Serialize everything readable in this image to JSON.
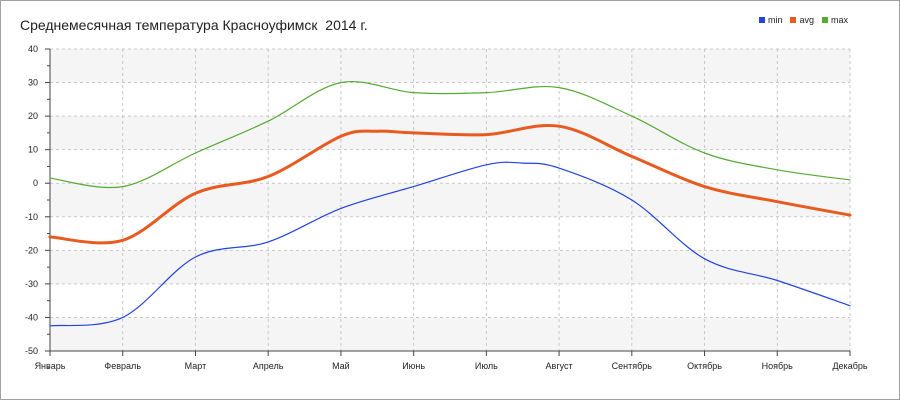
{
  "chart_data": {
    "type": "line",
    "title": "Среднемесячная температура Красноуфимск  2014 г.",
    "categories": [
      "Январь",
      "Февраль",
      "Март",
      "Апрель",
      "Май",
      "Июнь",
      "Июль",
      "Август",
      "Сентябрь",
      "Октябрь",
      "Ноябрь",
      "Декабрь"
    ],
    "ylim": [
      -50,
      40
    ],
    "yticks": [
      40,
      30,
      20,
      10,
      0,
      -10,
      -20,
      -30,
      -40,
      -50
    ],
    "grid": true,
    "legend_position": "top-right",
    "series": [
      {
        "name": "min",
        "color": "#2244dd",
        "x": [
          0,
          1,
          2,
          3,
          4,
          5,
          6,
          6.5,
          7,
          8,
          9,
          10,
          11
        ],
        "values": [
          -42.5,
          -40,
          -22,
          -17.5,
          -7.5,
          -1,
          5.5,
          6,
          4.5,
          -5,
          -22.5,
          -29,
          -36.5
        ]
      },
      {
        "name": "avg",
        "color": "#e85a1e",
        "x": [
          0,
          1,
          2,
          3,
          4,
          4.5,
          5,
          6,
          7,
          8,
          9,
          10,
          11
        ],
        "values": [
          -16,
          -17,
          -3,
          2,
          14,
          15.5,
          15,
          14.5,
          17,
          8,
          -1,
          -5.5,
          -9.5
        ]
      },
      {
        "name": "max",
        "color": "#55aa33",
        "x": [
          0,
          1,
          2,
          3,
          4,
          5,
          6,
          7,
          8,
          9,
          10,
          11
        ],
        "values": [
          1.5,
          -1,
          9,
          18.5,
          30,
          27,
          27,
          28.5,
          20,
          9,
          4,
          1
        ]
      }
    ]
  }
}
